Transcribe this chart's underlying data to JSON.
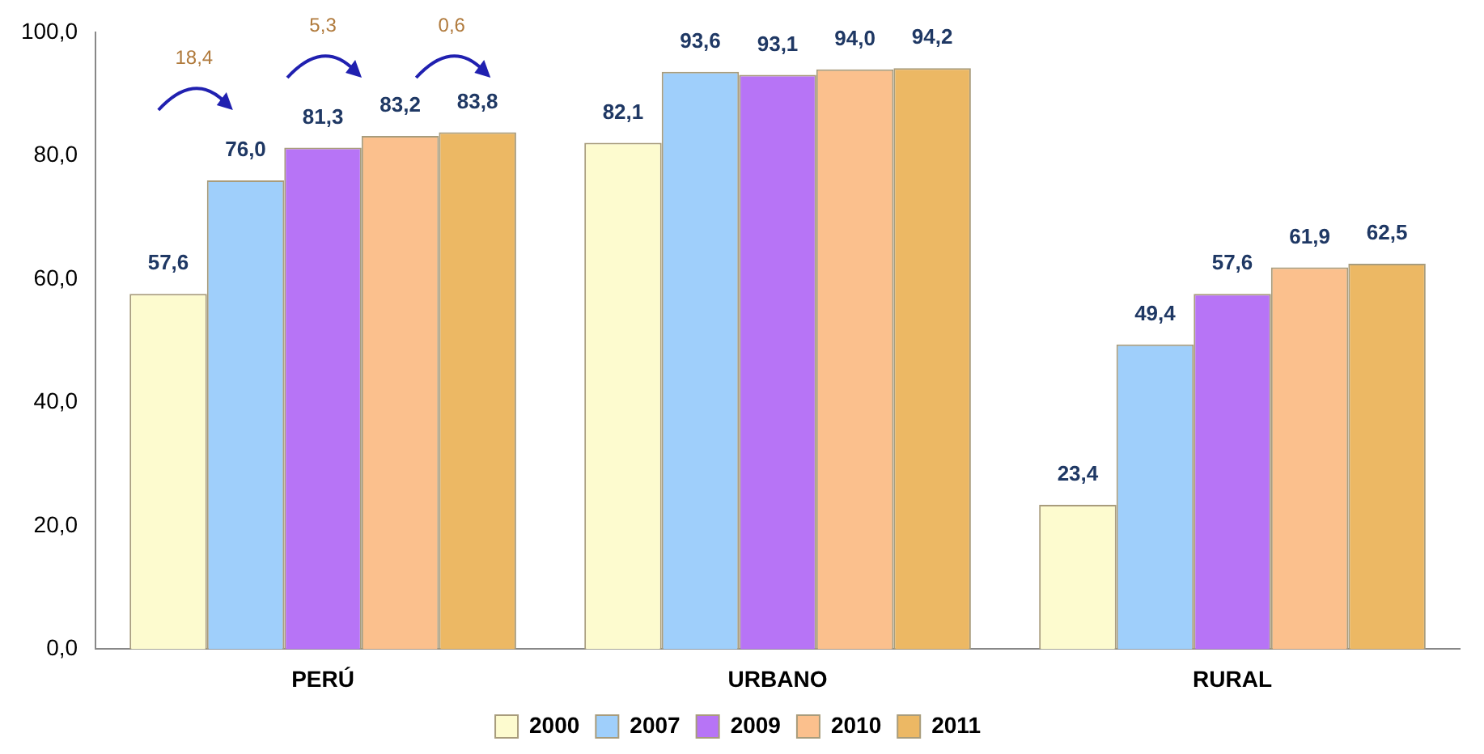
{
  "chart_data": {
    "type": "bar",
    "categories": [
      "PERÚ",
      "URBANO",
      "RURAL"
    ],
    "series": [
      {
        "name": "2000",
        "color": "#fdfbcf",
        "values": [
          57.6,
          82.1,
          23.4
        ],
        "value_labels": [
          "57,6",
          "82,1",
          "23,4"
        ]
      },
      {
        "name": "2007",
        "color": "#9fcffb",
        "values": [
          76.0,
          93.6,
          49.4
        ],
        "value_labels": [
          "76,0",
          "93,6",
          "49,4"
        ]
      },
      {
        "name": "2009",
        "color": "#b774f6",
        "values": [
          81.3,
          93.1,
          57.6
        ],
        "value_labels": [
          "81,3",
          "93,1",
          "57,6"
        ]
      },
      {
        "name": "2010",
        "color": "#fbc08d",
        "values": [
          83.2,
          94.0,
          61.9
        ],
        "value_labels": [
          "83,2",
          "94,0",
          "61,9"
        ]
      },
      {
        "name": "2011",
        "color": "#ecb864",
        "values": [
          83.8,
          94.2,
          62.5
        ],
        "value_labels": [
          "83,8",
          "94,2",
          "62,5"
        ]
      }
    ],
    "ylim": [
      0,
      100
    ],
    "yticks": [
      {
        "value": 0,
        "label": "0,0"
      },
      {
        "value": 20,
        "label": "20,0"
      },
      {
        "value": 40,
        "label": "40,0"
      },
      {
        "value": 60,
        "label": "60,0"
      },
      {
        "value": 80,
        "label": "80,0"
      },
      {
        "value": 100,
        "label": "100,0"
      }
    ],
    "annotations": [
      "18,4",
      "5,3",
      "0,6"
    ],
    "grid": false,
    "legend": "bottom"
  }
}
